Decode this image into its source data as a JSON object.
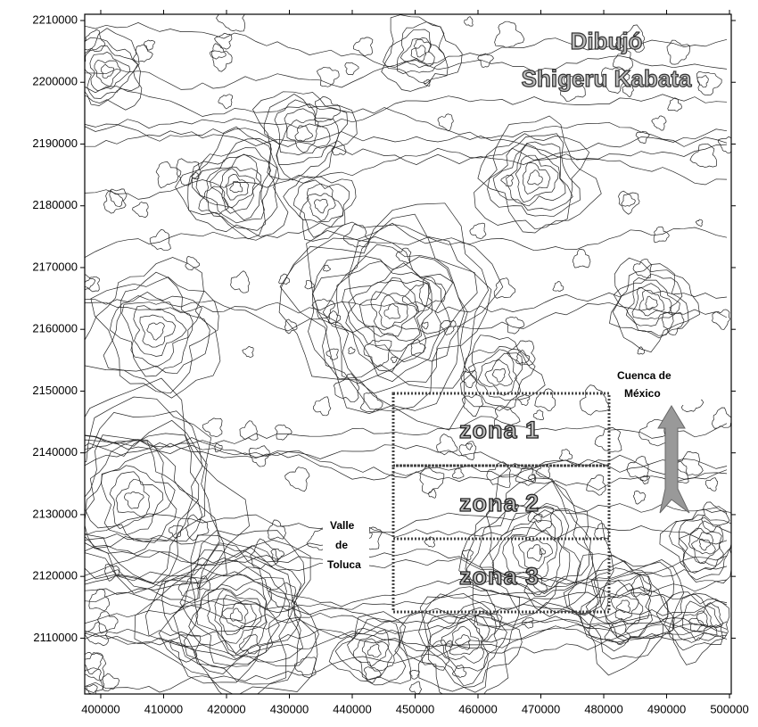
{
  "map": {
    "xlim": [
      397450,
      500280
    ],
    "ylim": [
      2100960,
      2211010
    ],
    "xticks": [
      400000,
      410000,
      420000,
      430000,
      440000,
      450000,
      460000,
      470000,
      480000,
      490000,
      500000
    ],
    "yticks": [
      2110000,
      2120000,
      2130000,
      2140000,
      2150000,
      2160000,
      2170000,
      2180000,
      2190000,
      2200000,
      2210000
    ],
    "credit": [
      "Dibujó",
      "Shigeru Kabata"
    ],
    "zones": [
      "zona 1",
      "zona 2",
      "zona 3"
    ],
    "valle": [
      "Valle",
      "de",
      "Toluca"
    ],
    "cuenca": [
      "Cuenca de",
      "México"
    ]
  }
}
